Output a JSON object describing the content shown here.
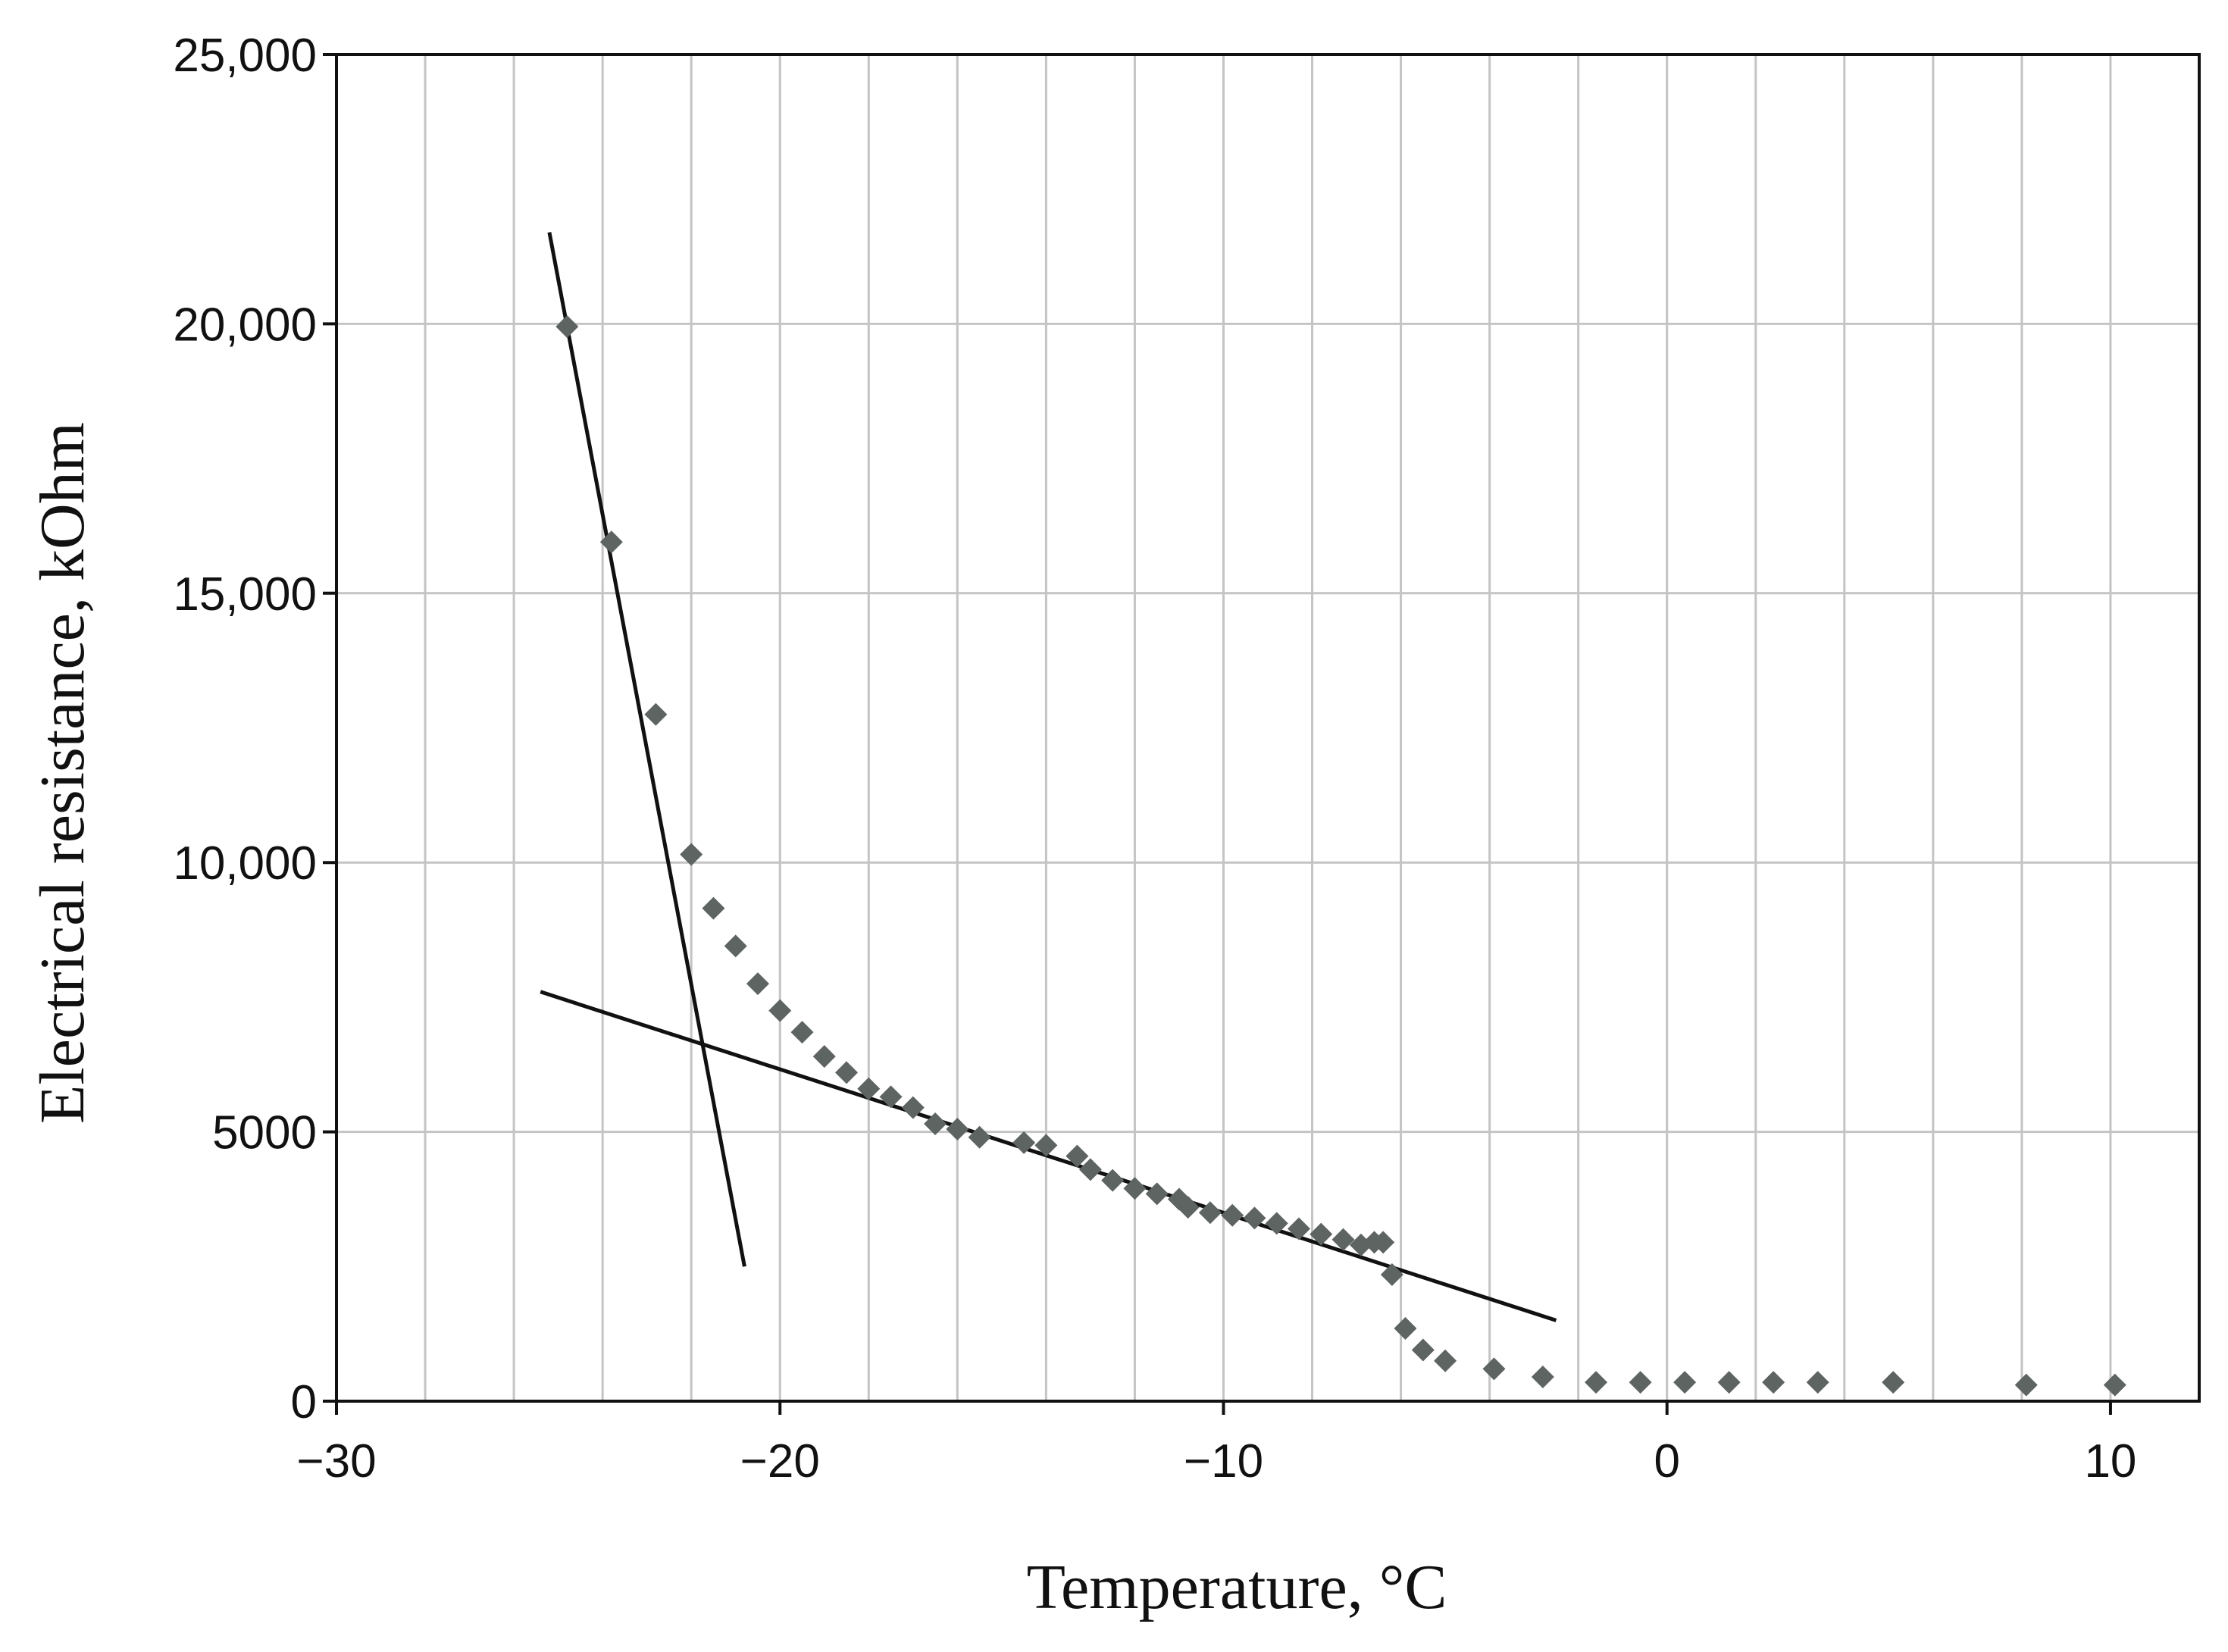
{
  "chart_data": {
    "type": "scatter",
    "xlabel": "Temperature, °C",
    "ylabel": "Electrical resistance, kOhm",
    "xlim": [
      -30,
      12
    ],
    "ylim": [
      0,
      25000
    ],
    "x_ticks": [
      -30,
      -20,
      -10,
      0,
      10
    ],
    "x_tick_labels": [
      "−30",
      "−20",
      "−10",
      "0",
      "10"
    ],
    "y_ticks": [
      0,
      5000,
      10000,
      15000,
      20000,
      25000
    ],
    "y_tick_labels": [
      "0",
      "5000",
      "10,000",
      "15,000",
      "20,000",
      "25,000"
    ],
    "grid": true,
    "x_minor_grid_step": 2,
    "series": [
      {
        "points": [
          [
            -24.8,
            19950
          ],
          [
            -23.8,
            15950
          ],
          [
            -22.8,
            12750
          ],
          [
            -22.0,
            10150
          ],
          [
            -21.5,
            9150
          ],
          [
            -21.0,
            8450
          ],
          [
            -20.5,
            7750
          ],
          [
            -20.0,
            7250
          ],
          [
            -19.5,
            6850
          ],
          [
            -19.0,
            6400
          ],
          [
            -18.5,
            6100
          ],
          [
            -18.0,
            5800
          ],
          [
            -17.5,
            5650
          ],
          [
            -17.0,
            5450
          ],
          [
            -16.5,
            5150
          ],
          [
            -16.0,
            5050
          ],
          [
            -15.5,
            4900
          ],
          [
            -14.5,
            4800
          ],
          [
            -14.0,
            4750
          ],
          [
            -13.3,
            4550
          ],
          [
            -13.0,
            4300
          ],
          [
            -12.5,
            4100
          ],
          [
            -12.0,
            3950
          ],
          [
            -11.5,
            3850
          ],
          [
            -11.0,
            3750
          ],
          [
            -10.8,
            3600
          ],
          [
            -10.3,
            3500
          ],
          [
            -9.8,
            3450
          ],
          [
            -9.3,
            3400
          ],
          [
            -8.8,
            3300
          ],
          [
            -8.3,
            3200
          ],
          [
            -7.8,
            3100
          ],
          [
            -7.3,
            3000
          ],
          [
            -6.9,
            2900
          ],
          [
            -6.6,
            2950
          ],
          [
            -6.4,
            2950
          ],
          [
            -6.2,
            2350
          ],
          [
            -5.9,
            1350
          ],
          [
            -5.5,
            950
          ],
          [
            -5.0,
            750
          ],
          [
            -3.9,
            600
          ],
          [
            -2.8,
            450
          ],
          [
            -1.6,
            350
          ],
          [
            -0.6,
            350
          ],
          [
            0.4,
            350
          ],
          [
            1.4,
            350
          ],
          [
            2.4,
            350
          ],
          [
            3.4,
            350
          ],
          [
            5.1,
            350
          ],
          [
            8.1,
            300
          ],
          [
            10.1,
            300
          ]
        ]
      }
    ],
    "trend_lines": [
      {
        "from": [
          -25.2,
          21700
        ],
        "to": [
          -20.8,
          2500
        ]
      },
      {
        "from": [
          -25.4,
          7600
        ],
        "to": [
          -2.5,
          1500
        ]
      }
    ]
  }
}
